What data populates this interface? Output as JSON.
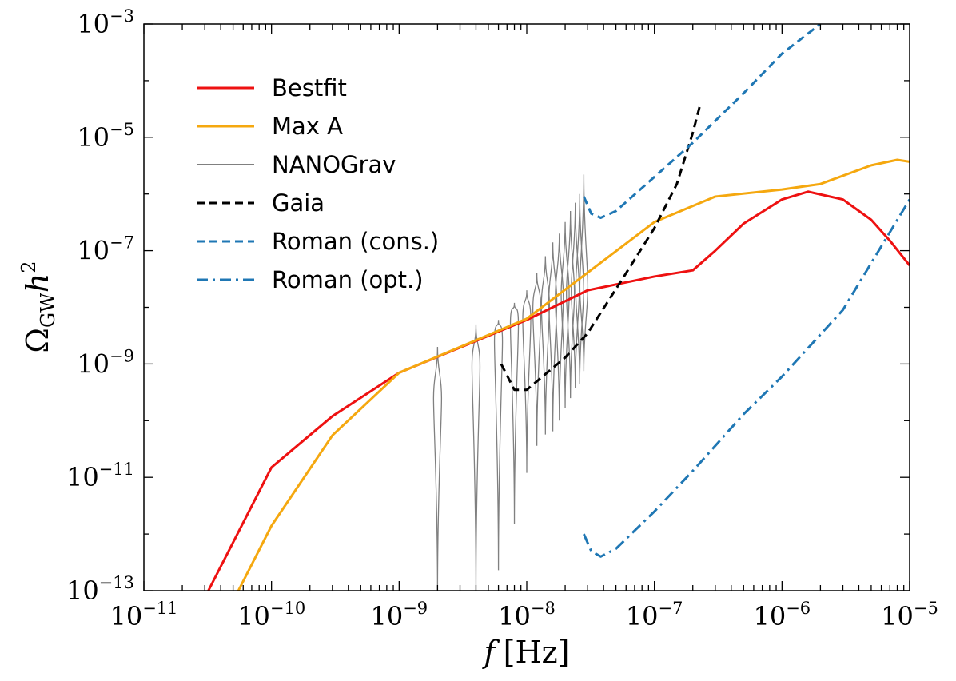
{
  "chart_data": {
    "type": "line",
    "title": "",
    "xlabel": {
      "prefix": "f",
      "suffix": "[Hz]"
    },
    "ylabel": {
      "main": "Ω",
      "subscript": "GW",
      "var": "h",
      "superscript": "2"
    },
    "x_scale": "log",
    "y_scale": "log",
    "xlim": [
      1e-11,
      1e-05
    ],
    "ylim": [
      1e-13,
      0.001
    ],
    "grid": false,
    "legend_position": "top-left",
    "x_ticks": [
      {
        "value": 1e-11,
        "base": "10",
        "exp": "−11"
      },
      {
        "value": 1e-10,
        "base": "10",
        "exp": "−10"
      },
      {
        "value": 1e-09,
        "base": "10",
        "exp": "−9"
      },
      {
        "value": 1e-08,
        "base": "10",
        "exp": "−8"
      },
      {
        "value": 1e-07,
        "base": "10",
        "exp": "−7"
      },
      {
        "value": 1e-06,
        "base": "10",
        "exp": "−6"
      },
      {
        "value": 1e-05,
        "base": "10",
        "exp": "−5"
      }
    ],
    "y_ticks": [
      {
        "value": 1e-13,
        "base": "10",
        "exp": "−13"
      },
      {
        "value": 1e-11,
        "base": "10",
        "exp": "−11"
      },
      {
        "value": 1e-09,
        "base": "10",
        "exp": "−9"
      },
      {
        "value": 1e-07,
        "base": "10",
        "exp": "−7"
      },
      {
        "value": 1e-05,
        "base": "10",
        "exp": "−5"
      },
      {
        "value": 0.001,
        "base": "10",
        "exp": "−3"
      }
    ],
    "series": [
      {
        "name": "Bestfit",
        "color": "#ee1111",
        "dash": "solid",
        "width": 3,
        "points": [
          [
            3.2e-11,
            1e-13
          ],
          [
            1e-10,
            1.5e-11
          ],
          [
            3e-10,
            1.2e-10
          ],
          [
            1e-09,
            7e-10
          ],
          [
            1e-08,
            6e-09
          ],
          [
            3e-08,
            2e-08
          ],
          [
            1e-07,
            3.5e-08
          ],
          [
            2e-07,
            4.5e-08
          ],
          [
            3e-07,
            1e-07
          ],
          [
            5e-07,
            3e-07
          ],
          [
            1e-06,
            8e-07
          ],
          [
            1.6e-06,
            1.1e-06
          ],
          [
            3e-06,
            8e-07
          ],
          [
            5e-06,
            3.5e-07
          ],
          [
            7e-06,
            1.5e-07
          ],
          [
            1e-05,
            5.5e-08
          ]
        ]
      },
      {
        "name": "Max A",
        "color": "#f5a80f",
        "dash": "solid",
        "width": 3,
        "points": [
          [
            5.5e-11,
            1e-13
          ],
          [
            1e-10,
            1.4e-12
          ],
          [
            3e-10,
            5.5e-11
          ],
          [
            1e-09,
            7e-10
          ],
          [
            1e-08,
            6.3e-09
          ],
          [
            1e-07,
            3.2e-07
          ],
          [
            3e-07,
            9e-07
          ],
          [
            1e-06,
            1.2e-06
          ],
          [
            2e-06,
            1.5e-06
          ],
          [
            5e-06,
            3.2e-06
          ],
          [
            8e-06,
            4e-06
          ],
          [
            1e-05,
            3.7e-06
          ]
        ]
      },
      {
        "name": "NANOGrav",
        "color": "#808080",
        "dash": "solid",
        "width": 2,
        "points": [
          [
            2e-09,
            1e-13
          ],
          [
            4e-09,
            1e-13
          ],
          [
            6e-09,
            2.3e-13
          ],
          [
            8e-09,
            1.5e-12
          ],
          [
            1e-08,
            1.2e-11
          ],
          [
            1.2e-08,
            3.6e-11
          ],
          [
            1.4e-08,
            5.7e-11
          ],
          [
            1.6e-08,
            6.5e-11
          ],
          [
            1.8e-08,
            1e-10
          ],
          [
            2e-08,
            1.7e-10
          ],
          [
            2.2e-08,
            2.5e-10
          ],
          [
            2.4e-08,
            3.8e-10
          ],
          [
            2.6e-08,
            4.5e-10
          ],
          [
            2.8e-08,
            7.5e-10
          ]
        ]
      },
      {
        "name": "Gaia",
        "color": "#000000",
        "dash": "10,6",
        "width": 3,
        "points": [
          [
            6.3e-09,
            1e-09
          ],
          [
            8e-09,
            3.5e-10
          ],
          [
            1e-08,
            3.5e-10
          ],
          [
            2e-08,
            1.3e-09
          ],
          [
            3e-08,
            3.5e-09
          ],
          [
            6e-08,
            4e-08
          ],
          [
            1e-07,
            2.5e-07
          ],
          [
            1.5e-07,
            1.5e-06
          ],
          [
            2e-07,
            1.2e-05
          ],
          [
            2.3e-07,
            4e-05
          ]
        ]
      },
      {
        "name": "Roman (cons.)",
        "color": "#1f77b4",
        "dash": "10,6",
        "width": 3,
        "points": [
          [
            2.8e-08,
            9e-07
          ],
          [
            3.2e-08,
            4.5e-07
          ],
          [
            3.8e-08,
            3.8e-07
          ],
          [
            5e-08,
            5e-07
          ],
          [
            1e-07,
            2e-06
          ],
          [
            2e-07,
            8e-06
          ],
          [
            5e-07,
            6e-05
          ],
          [
            1e-06,
            0.0003
          ],
          [
            2e-06,
            0.001
          ]
        ]
      },
      {
        "name": "Roman (opt.)",
        "color": "#1f77b4",
        "dash": "14,6,3,6",
        "width": 3,
        "points": [
          [
            2.8e-08,
            1e-12
          ],
          [
            3.2e-08,
            5e-13
          ],
          [
            3.8e-08,
            4e-13
          ],
          [
            5e-08,
            5.5e-13
          ],
          [
            1e-07,
            2.5e-12
          ],
          [
            2e-07,
            1.3e-11
          ],
          [
            5e-07,
            1.3e-10
          ],
          [
            1e-06,
            6e-10
          ],
          [
            3e-06,
            9e-09
          ],
          [
            1e-05,
            8e-07
          ]
        ]
      }
    ],
    "nanograv_bins": [
      {
        "f": 2e-09,
        "lo": 1e-13,
        "hi": 2e-09,
        "mid": 2.5e-10
      },
      {
        "f": 4e-09,
        "lo": 1e-13,
        "hi": 5e-09,
        "mid": 9e-10
      },
      {
        "f": 6e-09,
        "lo": 2.3e-13,
        "hi": 6e-09,
        "mid": 2.5e-09
      },
      {
        "f": 8e-09,
        "lo": 1.5e-12,
        "hi": 1.2e-08,
        "mid": 5e-09
      },
      {
        "f": 1e-08,
        "lo": 1.2e-11,
        "hi": 2e-08,
        "mid": 6e-09
      },
      {
        "f": 1.2e-08,
        "lo": 3.6e-11,
        "hi": 4e-08,
        "mid": 9e-09
      },
      {
        "f": 1.4e-08,
        "lo": 5.7e-11,
        "hi": 8e-08,
        "mid": 1.1e-08
      },
      {
        "f": 1.6e-08,
        "lo": 6.5e-11,
        "hi": 1.4e-07,
        "mid": 1.3e-08
      },
      {
        "f": 1.8e-08,
        "lo": 1e-10,
        "hi": 2e-07,
        "mid": 1.5e-08
      },
      {
        "f": 2e-08,
        "lo": 1.7e-10,
        "hi": 3.2e-07,
        "mid": 1.7e-08
      },
      {
        "f": 2.2e-08,
        "lo": 2.5e-10,
        "hi": 5e-07,
        "mid": 1.8e-08
      },
      {
        "f": 2.4e-08,
        "lo": 3.8e-10,
        "hi": 7e-07,
        "mid": 2e-08
      },
      {
        "f": 2.6e-08,
        "lo": 4.5e-10,
        "hi": 1e-06,
        "mid": 2.1e-08
      },
      {
        "f": 2.8e-08,
        "lo": 7.5e-10,
        "hi": 2.2e-06,
        "mid": 2.3e-08
      }
    ]
  }
}
